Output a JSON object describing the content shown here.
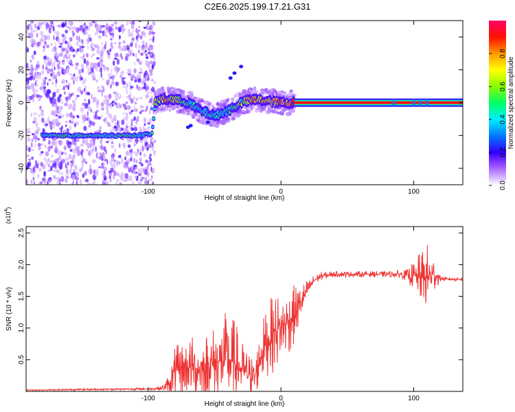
{
  "title": "C2E6.2025.199.17.21.G31",
  "chart_data": [
    {
      "type": "heatmap",
      "xlabel": "Height of straight line (km)",
      "ylabel": "Frequency (Hz)",
      "xlim": [
        -192,
        137
      ],
      "ylim": [
        -50,
        50
      ],
      "x_ticks": [
        "-100",
        "0",
        "100"
      ],
      "x_tick_values": [
        -100,
        0,
        100
      ],
      "y_ticks": [
        "-40",
        "-20",
        "0",
        "20",
        "40"
      ],
      "y_tick_values": [
        -40,
        -20,
        0,
        20,
        40
      ],
      "colorbar": {
        "label": "Normalized spectral amplitude",
        "ticks": [
          "0.0",
          "0.2",
          "0.4",
          "0.6",
          "0.8"
        ],
        "tick_values": [
          0.0,
          0.2,
          0.4,
          0.6,
          0.8
        ],
        "colors": [
          "#ffffff",
          "#cc99ff",
          "#7700ff",
          "#0000ff",
          "#00ffff",
          "#00ff00",
          "#ffff00",
          "#ff9900",
          "#ff0000",
          "#ff00aa"
        ]
      },
      "ridge": {
        "x": [
          -190,
          -170,
          -150,
          -130,
          -110,
          -97,
          -95,
          -90,
          -80,
          -70,
          -60,
          -50,
          -40,
          -30,
          -20,
          -10,
          0,
          10,
          50,
          100,
          137
        ],
        "y": [
          -20,
          -20,
          -20,
          -20,
          -20,
          -19,
          0,
          2,
          2,
          0,
          -5,
          -8,
          -5,
          0,
          2,
          1,
          0,
          0,
          0,
          0,
          0
        ],
        "amplitude": [
          0.45,
          0.5,
          0.5,
          0.5,
          0.5,
          0.45,
          0.6,
          0.8,
          0.7,
          0.5,
          0.45,
          0.45,
          0.5,
          0.6,
          0.85,
          0.8,
          0.85,
          0.9,
          0.95,
          0.95,
          0.95
        ]
      },
      "grid": false
    },
    {
      "type": "line",
      "xlabel": "Height of straight line (km)",
      "ylabel": "SNR (10 * v/v)",
      "y_multiplier": "(x10^4)",
      "xlim": [
        -192,
        137
      ],
      "ylim": [
        0,
        2.6
      ],
      "x_ticks": [
        "-100",
        "0",
        "100"
      ],
      "x_tick_values": [
        -100,
        0,
        100
      ],
      "y_ticks": [
        "0.5",
        "1.0",
        "1.5",
        "2.0",
        "2.5"
      ],
      "y_tick_values": [
        0.5,
        1.0,
        1.5,
        2.0,
        2.5
      ],
      "series": [
        {
          "color": "#ee3333",
          "envelope_x": [
            -192,
            -150,
            -100,
            -90,
            -85,
            -80,
            -70,
            -60,
            -50,
            -40,
            -35,
            -30,
            -20,
            -15,
            -10,
            -5,
            0,
            5,
            10,
            15,
            20,
            25,
            30,
            40,
            60,
            80,
            90,
            95,
            100,
            105,
            110,
            115,
            120,
            125,
            137
          ],
          "envelope_y": [
            0.02,
            0.03,
            0.04,
            0.05,
            0.1,
            0.3,
            0.4,
            0.35,
            0.45,
            0.5,
            0.45,
            0.35,
            0.2,
            0.6,
            0.8,
            0.95,
            1.0,
            1.1,
            1.2,
            1.4,
            1.6,
            1.75,
            1.82,
            1.85,
            1.85,
            1.85,
            1.85,
            1.83,
            1.82,
            1.8,
            1.8,
            1.85,
            1.78,
            1.77,
            1.77
          ],
          "noise_amplitude": [
            0.005,
            0.01,
            0.01,
            0.02,
            0.1,
            0.25,
            0.3,
            0.35,
            0.4,
            0.5,
            0.45,
            0.3,
            0.2,
            0.3,
            0.35,
            0.4,
            0.35,
            0.35,
            0.3,
            0.2,
            0.1,
            0.06,
            0.04,
            0.03,
            0.03,
            0.03,
            0.04,
            0.06,
            0.15,
            0.25,
            0.35,
            0.2,
            0.03,
            0.02,
            0.02
          ]
        }
      ],
      "grid": false
    }
  ]
}
